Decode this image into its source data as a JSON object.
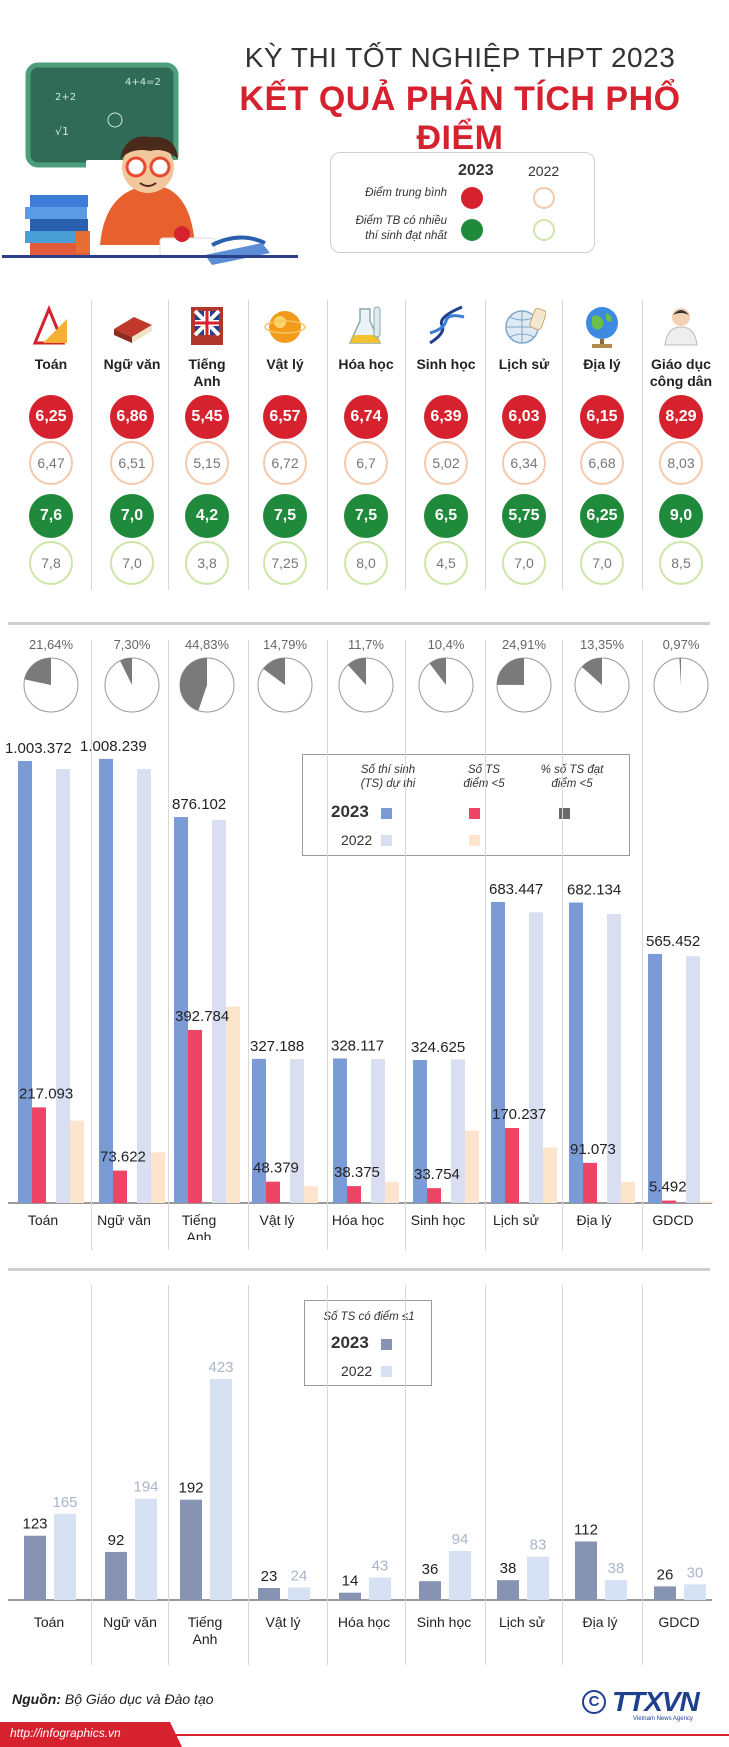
{
  "header": {
    "title_line1": "KỲ THI TỐT NGHIỆP THPT 2023",
    "title_line2": "KẾT QUẢ PHÂN TÍCH PHỔ ĐIỂM"
  },
  "legend_top": {
    "year_2023": "2023",
    "year_2022": "2022",
    "avg_label": "Điểm trung bình",
    "mode_label_line1": "Điểm TB có nhiều",
    "mode_label_line2": "thí sinh đạt nhất"
  },
  "colors": {
    "red": "#d6212f",
    "green": "#1f8a3b",
    "blue2023": "#7b9bd6",
    "blue2022": "#d9dff0",
    "pink": "#ee4566",
    "peach": "#fde4cc",
    "slate2023": "#8793b3",
    "slate2022": "#d6e2f3"
  },
  "subjects": [
    {
      "icon": "triangle-ruler-icon",
      "label_l1": "Toán",
      "label_l2": "",
      "avg2023": "6,25",
      "avg2022": "6,47",
      "mode2023": "7,6",
      "mode2022": "7,8",
      "pct": "21,64%",
      "pct_value": 21.64,
      "xlabel_l1": "Toán",
      "xlabel_l2": ""
    },
    {
      "icon": "book-icon",
      "label_l1": "Ngữ văn",
      "label_l2": "",
      "avg2023": "6,86",
      "avg2022": "6,51",
      "mode2023": "7,0",
      "mode2022": "7,0",
      "pct": "7,30%",
      "pct_value": 7.3,
      "xlabel_l1": "Ngữ văn",
      "xlabel_l2": ""
    },
    {
      "icon": "english-book-icon",
      "label_l1": "Tiếng",
      "label_l2": "Anh",
      "avg2023": "5,45",
      "avg2022": "5,15",
      "mode2023": "4,2",
      "mode2022": "3,8",
      "pct": "44,83%",
      "pct_value": 44.83,
      "xlabel_l1": "Tiếng",
      "xlabel_l2": "Anh"
    },
    {
      "icon": "atom-sphere-icon",
      "label_l1": "Vật lý",
      "label_l2": "",
      "avg2023": "6,57",
      "avg2022": "6,72",
      "mode2023": "7,5",
      "mode2022": "7,25",
      "pct": "14,79%",
      "pct_value": 14.79,
      "xlabel_l1": "Vật lý",
      "xlabel_l2": ""
    },
    {
      "icon": "flask-icon",
      "label_l1": "Hóa học",
      "label_l2": "",
      "avg2023": "6,74",
      "avg2022": "6,7",
      "mode2023": "7,5",
      "mode2022": "8,0",
      "pct": "11,7%",
      "pct_value": 11.7,
      "xlabel_l1": "Hóa học",
      "xlabel_l2": ""
    },
    {
      "icon": "dna-icon",
      "label_l1": "Sinh học",
      "label_l2": "",
      "avg2023": "6,39",
      "avg2022": "5,02",
      "mode2023": "6,5",
      "mode2022": "4,5",
      "pct": "10,4%",
      "pct_value": 10.4,
      "xlabel_l1": "Sinh học",
      "xlabel_l2": ""
    },
    {
      "icon": "globe-scroll-icon",
      "label_l1": "Lịch sử",
      "label_l2": "",
      "avg2023": "6,03",
      "avg2022": "6,34",
      "mode2023": "5,75",
      "mode2022": "7,0",
      "pct": "24,91%",
      "pct_value": 24.91,
      "xlabel_l1": "Lịch sử",
      "xlabel_l2": ""
    },
    {
      "icon": "globe-icon",
      "label_l1": "Địa lý",
      "label_l2": "",
      "avg2023": "6,15",
      "avg2022": "6,68",
      "mode2023": "6,25",
      "mode2022": "7,0",
      "pct": "13,35%",
      "pct_value": 13.35,
      "xlabel_l1": "Địa lý",
      "xlabel_l2": ""
    },
    {
      "icon": "person-icon",
      "label_l1": "Giáo dục",
      "label_l2": "công dân",
      "avg2023": "8,29",
      "avg2022": "8,03",
      "mode2023": "9,0",
      "mode2022": "8,5",
      "pct": "0,97%",
      "pct_value": 0.97,
      "xlabel_l1": "GDCD",
      "xlabel_l2": ""
    }
  ],
  "chart_data": [
    {
      "type": "bar",
      "categories": [
        "Toán",
        "Ngữ văn",
        "Tiếng Anh",
        "Vật lý",
        "Hóa học",
        "Sinh học",
        "Lịch sử",
        "Địa lý",
        "GDCD"
      ],
      "series": [
        {
          "name": "Số thí sinh (TS) dự thi 2023",
          "values": [
            1003372,
            1008239,
            876102,
            327188,
            328117,
            324625,
            683447,
            682134,
            565452
          ],
          "labels": [
            "1.003.372",
            "1.008.239",
            "876.102",
            "327.188",
            "328.117",
            "324.625",
            "683.447",
            "682.134",
            "565.452"
          ]
        },
        {
          "name": "Số thí sinh (TS) dự thi 2022",
          "values": [
            985000,
            985000,
            870000,
            327000,
            327000,
            326000,
            660000,
            656000,
            560000
          ]
        },
        {
          "name": "Số TS điểm <5 2023",
          "values": [
            217093,
            73622,
            392784,
            48379,
            38375,
            33754,
            170237,
            91073,
            5492
          ],
          "labels": [
            "217.093",
            "73.622",
            "392.784",
            "48.379",
            "38.375",
            "33.754",
            "170.237",
            "91.073",
            "5.492"
          ]
        },
        {
          "name": "Số TS điểm <5 2022",
          "values": [
            187000,
            115000,
            446000,
            38000,
            48000,
            164000,
            126000,
            48000,
            3000
          ]
        }
      ],
      "ylim": [
        0,
        1060000
      ],
      "legend": {
        "col1_l1": "Số thí sinh",
        "col1_l2": "(TS) dự thi",
        "col2_l1": "Số TS",
        "col2_l2": "điểm <5",
        "col3_l1": "% số TS đạt",
        "col3_l2": "điểm <5",
        "row1": "2023",
        "row2": "2022"
      },
      "legend_placement": "top-right"
    },
    {
      "type": "bar",
      "categories": [
        "Toán",
        "Ngữ văn",
        "Tiếng Anh",
        "Vật lý",
        "Hóa học",
        "Sinh học",
        "Lịch sử",
        "Địa lý",
        "GDCD"
      ],
      "series": [
        {
          "name": "2023",
          "values": [
            123,
            92,
            192,
            23,
            14,
            36,
            38,
            112,
            26
          ],
          "labels": [
            "123",
            "92",
            "192",
            "23",
            "14",
            "36",
            "38",
            "112",
            "26"
          ]
        },
        {
          "name": "2022",
          "values": [
            165,
            194,
            423,
            24,
            43,
            94,
            83,
            38,
            30
          ],
          "labels": [
            "165",
            "194",
            "423",
            "24",
            "43",
            "94",
            "83",
            "38",
            "30"
          ]
        }
      ],
      "ylim": [
        0,
        450
      ],
      "legend": {
        "title": "Số TS có điểm ≤1",
        "row1": "2023",
        "row2": "2022"
      },
      "legend_placement": "top-center"
    }
  ],
  "footer": {
    "source_label": "Nguồn:",
    "source_text": "Bộ Giáo dục và Đào tạo",
    "url": "http://infographics.vn",
    "logo": "TTXVN",
    "logo_sub": "Vietnam News Agency"
  }
}
